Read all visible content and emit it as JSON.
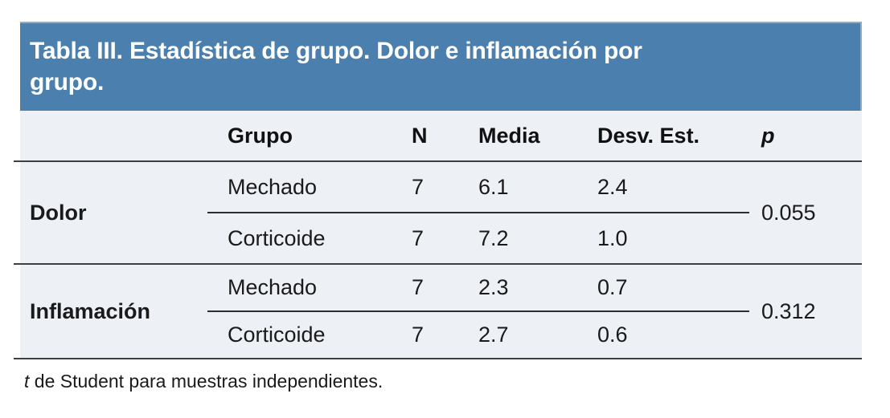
{
  "page": {
    "background": "#ffffff"
  },
  "colors": {
    "band_blue": "#4B7FAD",
    "band_edge_light": "#8FAECC",
    "table_background": "#EDF0F5",
    "rule_dark": "#3F3F3F",
    "text": "#1A1A1A"
  },
  "table": {
    "title_line1": "Tabla III. Estadística de grupo. Dolor e inflamación por",
    "title_line2": "grupo.",
    "columns": {
      "grupo": "Grupo",
      "n": "N",
      "media": "Media",
      "desv": "Desv. Est.",
      "p": "p"
    },
    "groups": [
      {
        "label": "Dolor",
        "p": "0.055",
        "rows": [
          {
            "grupo": "Mechado",
            "n": "7",
            "media": "6.1",
            "desv": "2.4"
          },
          {
            "grupo": "Corticoide",
            "n": "7",
            "media": "7.2",
            "desv": "1.0"
          }
        ]
      },
      {
        "label": "Inflamación",
        "p": "0.312",
        "rows": [
          {
            "grupo": "Mechado",
            "n": "7",
            "media": "2.3",
            "desv": "0.7"
          },
          {
            "grupo": "Corticoide",
            "n": "7",
            "media": "2.7",
            "desv": "0.6"
          }
        ]
      }
    ],
    "footnote_italic": "t",
    "footnote_rest": " de Student para muestras independientes."
  },
  "chart_data": {
    "type": "table",
    "title": "Tabla III. Estadística de grupo. Dolor e inflamación por grupo.",
    "columns": [
      "",
      "Grupo",
      "N",
      "Media",
      "Desv. Est.",
      "p"
    ],
    "rows": [
      [
        "Dolor",
        "Mechado",
        7,
        6.1,
        2.4,
        0.055
      ],
      [
        "Dolor",
        "Corticoide",
        7,
        7.2,
        1.0,
        0.055
      ],
      [
        "Inflamación",
        "Mechado",
        7,
        2.3,
        0.7,
        0.312
      ],
      [
        "Inflamación",
        "Corticoide",
        7,
        2.7,
        0.6,
        0.312
      ]
    ],
    "footnote": "t de Student para muestras independientes."
  }
}
